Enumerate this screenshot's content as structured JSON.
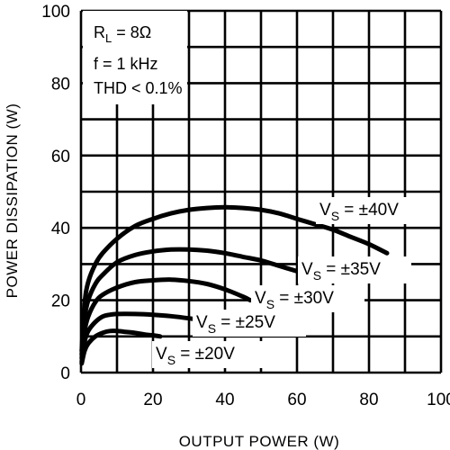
{
  "chart_data": {
    "type": "line",
    "title": "",
    "xlabel": "OUTPUT POWER (W)",
    "ylabel": "POWER DISSIPATION (W)",
    "xlim": [
      0,
      100
    ],
    "ylim": [
      0,
      100
    ],
    "x_ticks": [
      "0",
      "20",
      "40",
      "60",
      "80",
      "100"
    ],
    "y_ticks": [
      "0",
      "20",
      "40",
      "60",
      "80",
      "100"
    ],
    "grid": true,
    "annotations": {
      "rl_prefix": "R",
      "rl_sub": "L",
      "rl_value": " = 8Ω",
      "freq": "f = 1 kHz",
      "thd": "THD < 0.1%"
    },
    "series": [
      {
        "name": "VS = ±40V",
        "label_prefix": "V",
        "label_sub": "S",
        "label_value": " = ±40V",
        "x": [
          0.2,
          1,
          2,
          4,
          6,
          10,
          15,
          20,
          25,
          30,
          35,
          40,
          45,
          50,
          55,
          60,
          65,
          70,
          75,
          80,
          85
        ],
        "y": [
          6,
          19,
          25,
          30,
          33,
          37,
          40.5,
          42.5,
          44,
          45,
          45.5,
          45.7,
          45.5,
          45,
          44,
          42.5,
          41,
          39.5,
          37.5,
          35.5,
          33
        ]
      },
      {
        "name": "VS = ±35V",
        "label_prefix": "V",
        "label_sub": "S",
        "label_value": " = ±35V",
        "x": [
          0.2,
          1,
          2,
          4,
          6,
          10,
          15,
          20,
          25,
          30,
          35,
          40,
          45,
          50,
          55,
          60,
          63
        ],
        "y": [
          5,
          15,
          20,
          24.5,
          27,
          30.5,
          32.5,
          33.5,
          34,
          34,
          33.7,
          33,
          32,
          31,
          29.5,
          28,
          27
        ]
      },
      {
        "name": "VS = ±30V",
        "label_prefix": "V",
        "label_sub": "S",
        "label_value": " = ±30V",
        "x": [
          0.2,
          1,
          2,
          4,
          6,
          10,
          15,
          20,
          25,
          30,
          35,
          40,
          45,
          47
        ],
        "y": [
          4,
          11.5,
          15.5,
          19.5,
          21.5,
          23.5,
          25,
          25.5,
          25.7,
          25.3,
          24.5,
          23,
          21,
          20
        ]
      },
      {
        "name": "VS = ±25V",
        "label_prefix": "V",
        "label_sub": "S",
        "label_value": " = ±25V",
        "x": [
          0.2,
          1,
          2,
          4,
          6,
          8,
          10,
          15,
          20,
          25,
          30,
          33
        ],
        "y": [
          3,
          8.5,
          11.5,
          14,
          15.5,
          16,
          16.2,
          16.2,
          16,
          15.6,
          15,
          14.5
        ]
      },
      {
        "name": "VS = ±20V",
        "label_prefix": "V",
        "label_sub": "S",
        "label_value": " = ±20V",
        "x": [
          0.2,
          1,
          2,
          4,
          6,
          8,
          10,
          12,
          15,
          18,
          20,
          22
        ],
        "y": [
          2.5,
          6,
          8,
          10,
          11,
          11.5,
          11.5,
          11.3,
          11,
          10.5,
          10.3,
          10
        ]
      }
    ]
  }
}
